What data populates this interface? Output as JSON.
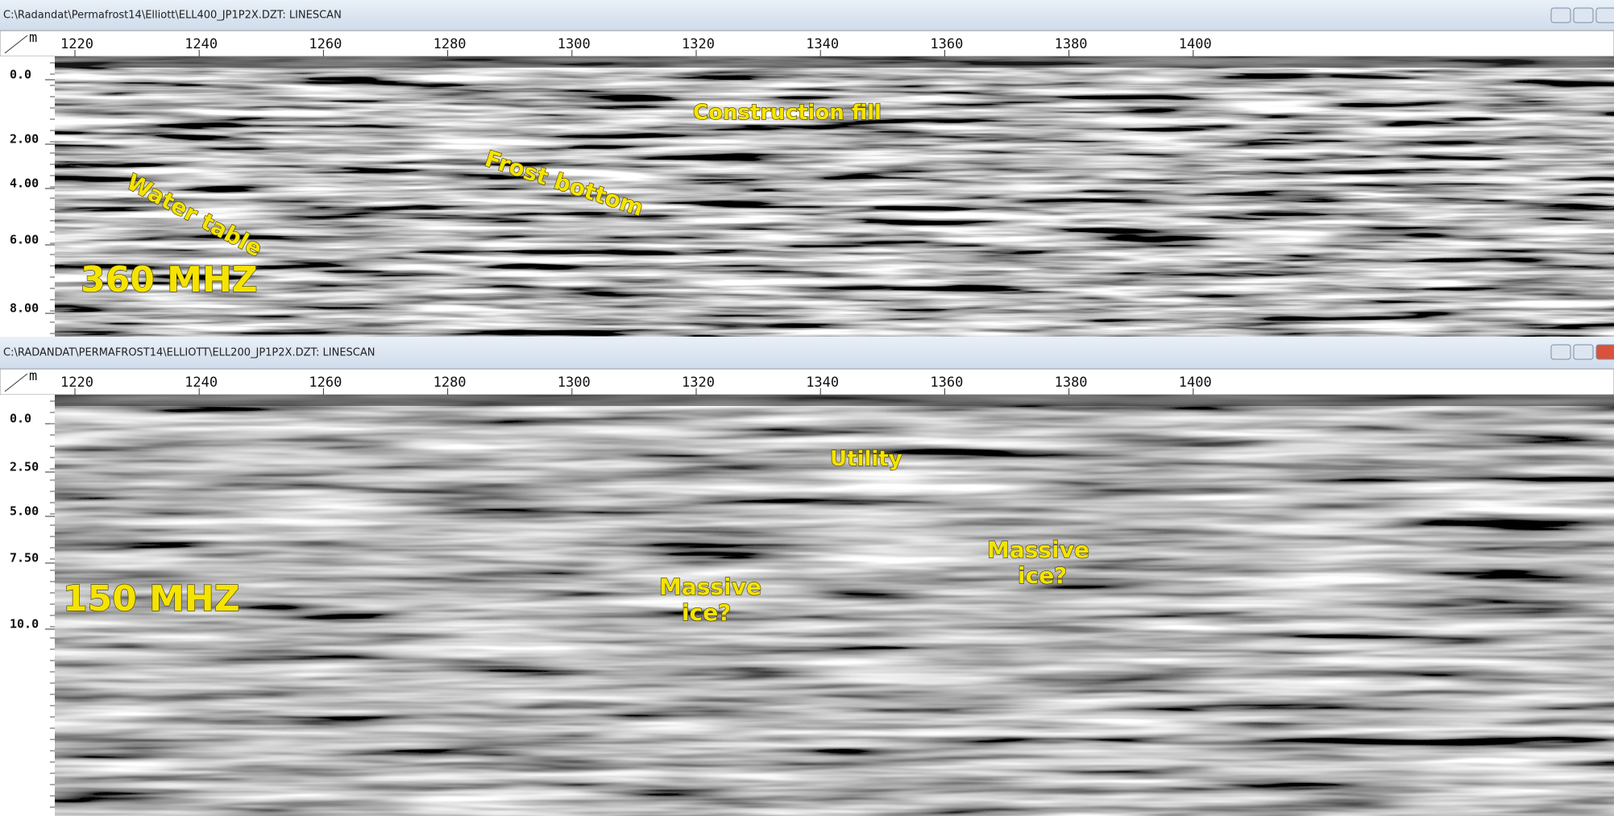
{
  "windows": [
    {
      "title": "C:\\Radandat\\Permafrost14\\Elliott\\ELL400_JP1P2X.DZT:  LINESCAN",
      "depth_unit": "m",
      "distance_ticks": [
        "1220",
        "1240",
        "1260",
        "1280",
        "1300",
        "1320",
        "1340",
        "1360",
        "1380",
        "1400"
      ],
      "depth_ticks": [
        "0.0",
        "2.00",
        "4.00",
        "6.00",
        "8.00"
      ],
      "annotations": [
        {
          "lines": [
            "Water table"
          ]
        },
        {
          "lines": [
            "Frost bottom"
          ]
        },
        {
          "lines": [
            "Construction fill"
          ]
        },
        {
          "lines": [
            "360 MHZ"
          ]
        }
      ]
    },
    {
      "title": "C:\\RADANDAT\\PERMAFROST14\\ELLIOTT\\ELL200_JP1P2X.DZT:  LINESCAN",
      "depth_unit": "m",
      "distance_ticks": [
        "1220",
        "1240",
        "1260",
        "1280",
        "1300",
        "1320",
        "1340",
        "1360",
        "1380",
        "1400"
      ],
      "depth_ticks": [
        "0.0",
        "2.50",
        "5.00",
        "7.50",
        "10.0"
      ],
      "annotations": [
        {
          "lines": [
            "Utility"
          ]
        },
        {
          "lines": [
            "Massive",
            "ice?"
          ]
        },
        {
          "lines": [
            "Massive",
            "ice?"
          ]
        },
        {
          "lines": [
            "150 MHZ"
          ]
        }
      ]
    }
  ]
}
